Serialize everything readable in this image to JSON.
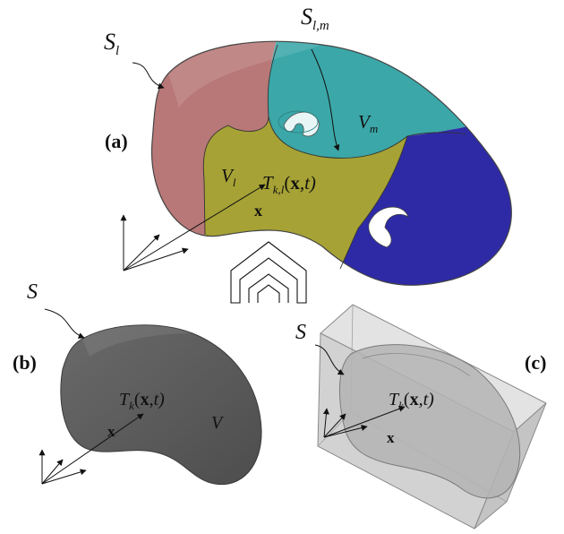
{
  "panels": {
    "a": {
      "tag": "(a)",
      "surface_label": "S",
      "surface_sub": "l",
      "interface_label": "S",
      "interface_sub": "l,m",
      "volume_m": "V",
      "volume_m_sub": "m",
      "volume_l": "V",
      "volume_l_sub": "l",
      "temp_fn": "T",
      "temp_sub": "k,l",
      "temp_args_open": "(",
      "temp_x": "x",
      "temp_args_close": ",t)",
      "pos_vec": "x"
    },
    "b": {
      "tag": "(b)",
      "surface_label": "S",
      "volume": "V",
      "temp_fn": "T",
      "temp_sub": "k",
      "temp_args_open": "(",
      "temp_x": "x",
      "temp_args_close": ",t)",
      "pos_vec": "x"
    },
    "c": {
      "tag": "(c)",
      "surface_label": "S",
      "temp_fn": "T",
      "temp_sub": "k",
      "temp_args_open": "(",
      "temp_x": "x",
      "temp_args_close": ",t)",
      "pos_vec": "x"
    }
  },
  "colors": {
    "region_pink": "#b87877",
    "region_teal": "#3ba7a8",
    "region_olive": "#a6a235",
    "region_blue": "#2e2aa6",
    "solid_dark": "#5a5a5a",
    "box_grey": "#d9d9d9"
  }
}
